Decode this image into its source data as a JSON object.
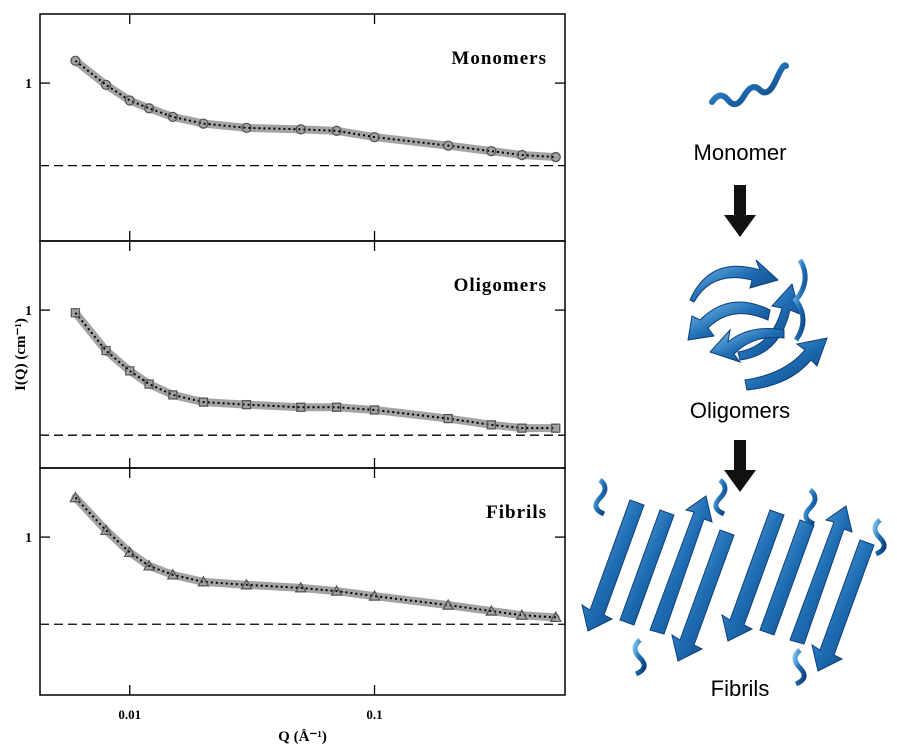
{
  "chart_data": [
    {
      "type": "scatter",
      "title": "Monomers",
      "marker": "circle",
      "log_x": true,
      "log_y": true,
      "x": [
        0.006,
        0.008,
        0.01,
        0.012,
        0.015,
        0.02,
        0.03,
        0.05,
        0.07,
        0.1,
        0.2,
        0.3,
        0.4,
        0.55
      ],
      "series": [
        {
          "color": "#8c8c8c",
          "values": [
            1.29,
            0.98,
            0.82,
            0.75,
            0.68,
            0.63,
            0.6,
            0.59,
            0.58,
            0.54,
            0.49,
            0.46,
            0.44,
            0.43
          ]
        }
      ],
      "baseline": 0.39,
      "xlim": [
        0.0043,
        0.6
      ],
      "ylim": [
        0.165,
        2.2
      ],
      "xticks": [
        0.01,
        0.1
      ],
      "yticks": [
        1
      ]
    },
    {
      "type": "scatter",
      "title": "Oligomers",
      "marker": "square",
      "log_x": true,
      "log_y": true,
      "ylabel": "I(Q) (cm⁻¹)",
      "x": [
        0.006,
        0.008,
        0.01,
        0.012,
        0.015,
        0.02,
        0.03,
        0.05,
        0.07,
        0.1,
        0.2,
        0.3,
        0.4,
        0.55
      ],
      "series": [
        {
          "color": "#8c8c8c",
          "values": [
            0.97,
            0.63,
            0.5,
            0.43,
            0.38,
            0.35,
            0.34,
            0.33,
            0.33,
            0.32,
            0.29,
            0.27,
            0.26,
            0.26
          ]
        }
      ],
      "baseline": 0.24,
      "xlim": [
        0.0043,
        0.6
      ],
      "ylim": [
        0.165,
        2.2
      ],
      "xticks": [
        0.01,
        0.1
      ],
      "yticks": [
        1
      ]
    },
    {
      "type": "scatter",
      "title": "Fibrils",
      "marker": "triangle",
      "log_x": true,
      "log_y": true,
      "xlabel": "Q (Å⁻¹)",
      "x": [
        0.006,
        0.008,
        0.01,
        0.012,
        0.015,
        0.02,
        0.03,
        0.05,
        0.07,
        0.1,
        0.2,
        0.3,
        0.4,
        0.55
      ],
      "series": [
        {
          "color": "#8c8c8c",
          "values": [
            1.57,
            1.08,
            0.84,
            0.72,
            0.65,
            0.6,
            0.58,
            0.56,
            0.54,
            0.51,
            0.46,
            0.43,
            0.41,
            0.4
          ]
        }
      ],
      "baseline": 0.37,
      "xlim": [
        0.0043,
        0.6
      ],
      "ylim": [
        0.165,
        2.2
      ],
      "xticks": [
        0.01,
        0.1
      ],
      "yticks": [
        1
      ]
    }
  ],
  "diagram": {
    "labels": [
      "Monomer",
      "Oligomers",
      "Fibrils"
    ]
  }
}
